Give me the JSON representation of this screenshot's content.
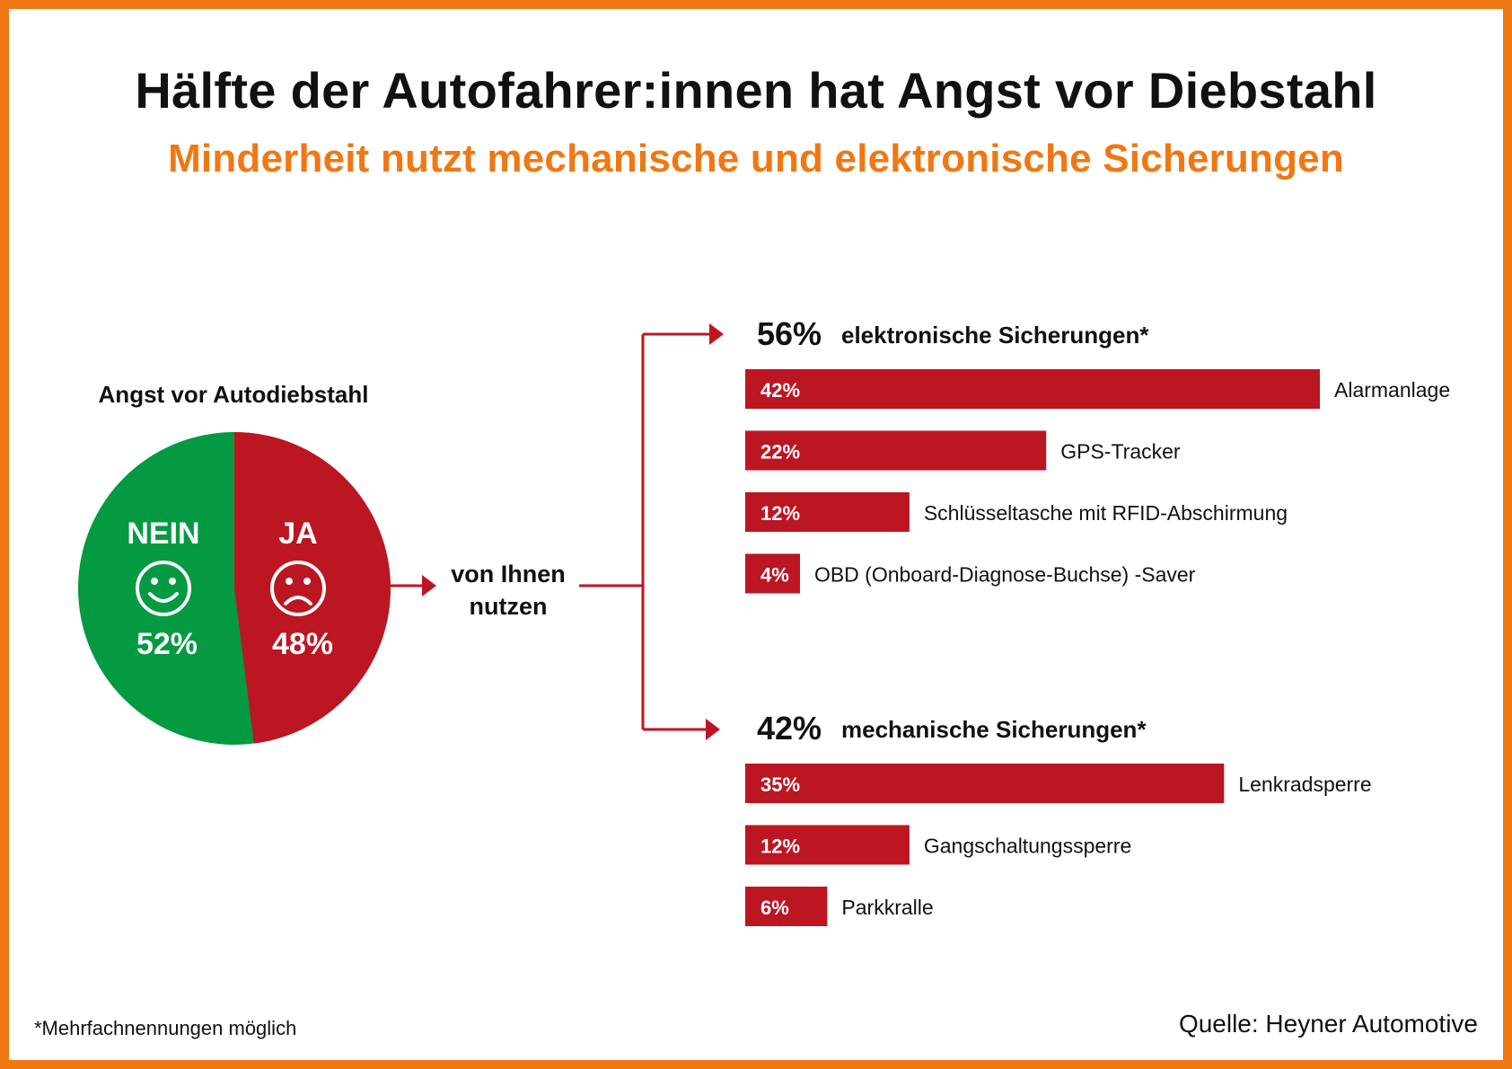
{
  "title": "Hälfte der Autofahrer:innen hat Angst vor Diebstahl",
  "subtitle": "Minderheit nutzt mechanische und elektronische Sicherungen",
  "colors": {
    "border": "#f07812",
    "accent_orange": "#f07812",
    "bar_red": "#bc1622",
    "pie_green": "#039a41",
    "pie_red": "#bc1622",
    "text": "#111111"
  },
  "chart_data": [
    {
      "type": "pie",
      "title": "Angst vor Autodiebstahl",
      "slices": [
        {
          "label": "NEIN",
          "value": 52,
          "value_label": "52%",
          "icon": "smiley-happy-icon",
          "color": "#039a41"
        },
        {
          "label": "JA",
          "value": 48,
          "value_label": "48%",
          "icon": "smiley-sad-icon",
          "color": "#bc1622"
        }
      ]
    },
    {
      "type": "bar",
      "orientation": "horizontal",
      "group_total": "56%",
      "title": "elektronische Sicherungen*",
      "categories": [
        "Alarmanlage",
        "GPS-Tracker",
        "Schlüsseltasche mit RFID-Abschirmung",
        "OBD (Onboard-Diagnose-Buchse) -Saver"
      ],
      "values": [
        42,
        22,
        12,
        4
      ],
      "value_labels": [
        "42%",
        "22%",
        "12%",
        "4%"
      ]
    },
    {
      "type": "bar",
      "orientation": "horizontal",
      "group_total": "42%",
      "title": "mechanische Sicherungen*",
      "categories": [
        "Lenkradsperre",
        "Gangschaltungssperre",
        "Parkkralle"
      ],
      "values": [
        35,
        12,
        6
      ],
      "value_labels": [
        "35%",
        "12%",
        "6%"
      ]
    }
  ],
  "flow_label": [
    "von Ihnen",
    "nutzen"
  ],
  "footnote": "*Mehrfachnennungen möglich",
  "source": "Quelle: Heyner Automotive"
}
